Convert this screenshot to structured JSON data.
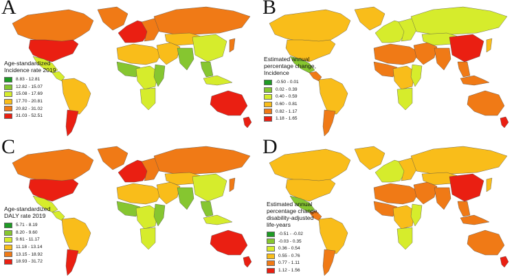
{
  "panels": [
    {
      "letter": "A",
      "legend": {
        "title": [
          "Age-standardized",
          "Incidence rate 2019"
        ],
        "items": [
          {
            "label": "8.83 - 12.81",
            "color": "#1e9b24"
          },
          {
            "label": "12.82 - 15.07",
            "color": "#86c630"
          },
          {
            "label": "15.08 - 17.69",
            "color": "#d6ec2c"
          },
          {
            "label": "17.70 - 20.81",
            "color": "#f9bd1a"
          },
          {
            "label": "20.82 - 31.02",
            "color": "#f07a16"
          },
          {
            "label": "31.03 - 52.51",
            "color": "#ea1f12"
          }
        ]
      },
      "regions": {
        "northAmerica": 4,
        "usa": 5,
        "mexico": 2,
        "centralAmerica": 2,
        "southAmerica": 3,
        "southernCone": 5,
        "greenland": 4,
        "westEurope": 5,
        "eastEurope": 4,
        "russia": 4,
        "northAfrica": 3,
        "westAfrica": 1,
        "centralAfrica": 2,
        "eastAfrica": 1,
        "southAfrica": 2,
        "middleEast": 3,
        "centralAsia": 3,
        "southAsia": 1,
        "china": 2,
        "seAsia": 1,
        "japan": 4,
        "indonesia": 2,
        "australia": 5,
        "newZealand": 5
      }
    },
    {
      "letter": "B",
      "legend": {
        "title": [
          "Estimated annual",
          "percentage change,",
          "Incidence"
        ],
        "items": [
          {
            "label": "-0.50 - 0.01",
            "color": "#1e9b24"
          },
          {
            "label": "0.02 - 0.39",
            "color": "#86c630"
          },
          {
            "label": "0.40 - 0.59",
            "color": "#d6ec2c"
          },
          {
            "label": "0.60 - 0.81",
            "color": "#f9bd1a"
          },
          {
            "label": "0.82 - 1.17",
            "color": "#f07a16"
          },
          {
            "label": "1.18 - 1.65",
            "color": "#ea1f12"
          }
        ]
      },
      "regions": {
        "northAmerica": 3,
        "usa": 3,
        "mexico": 1,
        "centralAmerica": 4,
        "southAmerica": 3,
        "southernCone": 4,
        "greenland": 3,
        "westEurope": 2,
        "eastEurope": 2,
        "russia": 2,
        "northAfrica": 4,
        "westAfrica": 4,
        "centralAfrica": 3,
        "eastAfrica": 2,
        "southAfrica": 2,
        "middleEast": 4,
        "centralAsia": 2,
        "southAsia": 4,
        "china": 5,
        "seAsia": 4,
        "japan": 3,
        "indonesia": 4,
        "australia": 4,
        "newZealand": 5
      }
    },
    {
      "letter": "C",
      "legend": {
        "title": [
          "Age-standardized",
          "DALY rate 2019"
        ],
        "items": [
          {
            "label": "5.71 - 8.19",
            "color": "#1e9b24"
          },
          {
            "label": "8.20 - 9.60",
            "color": "#86c630"
          },
          {
            "label": "9.61 - 11.17",
            "color": "#d6ec2c"
          },
          {
            "label": "11.18 - 13.14",
            "color": "#f9bd1a"
          },
          {
            "label": "13.15 - 18.92",
            "color": "#f07a16"
          },
          {
            "label": "18.93 - 31.72",
            "color": "#ea1f12"
          }
        ]
      },
      "regions": {
        "northAmerica": 4,
        "usa": 5,
        "mexico": 2,
        "centralAmerica": 2,
        "southAmerica": 3,
        "southernCone": 5,
        "greenland": 4,
        "westEurope": 5,
        "eastEurope": 4,
        "russia": 4,
        "northAfrica": 3,
        "westAfrica": 1,
        "centralAfrica": 2,
        "eastAfrica": 1,
        "southAfrica": 2,
        "middleEast": 3,
        "centralAsia": 3,
        "southAsia": 1,
        "china": 2,
        "seAsia": 1,
        "japan": 4,
        "indonesia": 2,
        "australia": 5,
        "newZealand": 5
      }
    },
    {
      "letter": "D",
      "legend": {
        "title": [
          "Estimated annual",
          "percentage change,",
          "disability-adjusted",
          "life-years"
        ],
        "items": [
          {
            "label": "-0.51 - -0.02",
            "color": "#1e9b24"
          },
          {
            "label": "-0.03 - 0.35",
            "color": "#86c630"
          },
          {
            "label": "0.36 - 0.54",
            "color": "#d6ec2c"
          },
          {
            "label": "0.55 - 0.76",
            "color": "#f9bd1a"
          },
          {
            "label": "0.77 - 1.11",
            "color": "#f07a16"
          },
          {
            "label": "1.12 - 1.56",
            "color": "#ea1f12"
          }
        ]
      },
      "regions": {
        "northAmerica": 3,
        "usa": 3,
        "mexico": 1,
        "centralAmerica": 4,
        "southAmerica": 3,
        "southernCone": 4,
        "greenland": 3,
        "westEurope": 2,
        "eastEurope": 3,
        "russia": 3,
        "northAfrica": 4,
        "westAfrica": 4,
        "centralAfrica": 3,
        "eastAfrica": 2,
        "southAfrica": 2,
        "middleEast": 4,
        "centralAsia": 3,
        "southAsia": 4,
        "china": 5,
        "seAsia": 4,
        "japan": 3,
        "indonesia": 4,
        "australia": 4,
        "newZealand": 5
      }
    }
  ]
}
